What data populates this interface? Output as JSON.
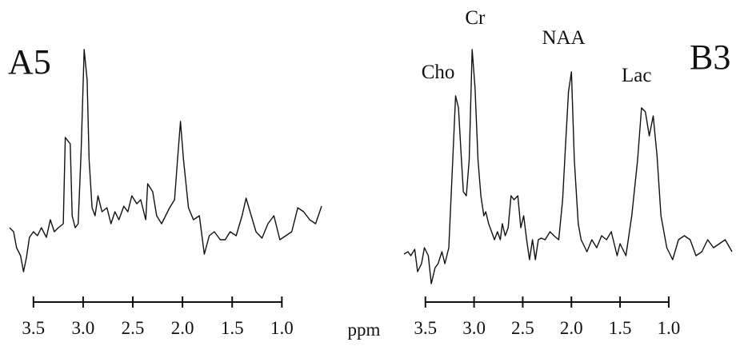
{
  "chart_data": [
    {
      "type": "line",
      "title": "A5",
      "x": [
        3.74,
        3.7,
        3.67,
        3.63,
        3.6,
        3.57,
        3.54,
        3.5,
        3.46,
        3.42,
        3.37,
        3.33,
        3.29,
        3.25,
        3.2,
        3.18,
        3.13,
        3.11,
        3.08,
        3.05,
        3.02,
        2.99,
        2.96,
        2.94,
        2.91,
        2.88,
        2.85,
        2.81,
        2.76,
        2.72,
        2.68,
        2.64,
        2.59,
        2.55,
        2.51,
        2.46,
        2.42,
        2.37,
        2.35,
        2.3,
        2.26,
        2.21,
        2.17,
        2.13,
        2.08,
        2.05,
        2.02,
        1.99,
        1.94,
        1.89,
        1.83,
        1.78,
        1.73,
        1.68,
        1.62,
        1.57,
        1.52,
        1.46,
        1.4,
        1.36,
        1.32,
        1.26,
        1.2,
        1.14,
        1.08,
        1.02,
        0.96,
        0.9,
        0.84,
        0.78,
        0.72,
        0.66,
        0.6
      ],
      "series": [
        {
          "color": "#111111",
          "values": [
            65,
            60,
            40,
            30,
            10,
            28,
            53,
            60,
            55,
            65,
            53,
            75,
            60,
            65,
            70,
            178,
            170,
            80,
            65,
            70,
            160,
            288,
            250,
            150,
            90,
            80,
            105,
            85,
            90,
            70,
            85,
            75,
            92,
            85,
            105,
            95,
            100,
            75,
            120,
            110,
            80,
            70,
            80,
            90,
            100,
            150,
            198,
            150,
            90,
            75,
            80,
            32,
            55,
            60,
            50,
            50,
            60,
            55,
            80,
            102,
            85,
            60,
            52,
            70,
            80,
            50,
            55,
            60,
            90,
            85,
            75,
            70,
            92
          ]
        }
      ],
      "xlim": [
        3.74,
        0.6
      ],
      "ylim": [
        -20,
        300
      ],
      "xticks": [
        3.5,
        {
          "value": 3,
          "label": "3.0"
        },
        2.5,
        {
          "value": 2,
          "label": "2.0"
        },
        1.5,
        {
          "value": 1,
          "label": "1.0"
        }
      ]
    },
    {
      "type": "line",
      "title": "B3",
      "xlabel": "ppm",
      "x": [
        3.72,
        3.68,
        3.65,
        3.61,
        3.58,
        3.54,
        3.51,
        3.47,
        3.44,
        3.4,
        3.37,
        3.33,
        3.3,
        3.26,
        3.23,
        3.19,
        3.16,
        3.13,
        3.11,
        3.08,
        3.05,
        3.02,
        2.99,
        2.96,
        2.93,
        2.9,
        2.88,
        2.85,
        2.82,
        2.79,
        2.76,
        2.73,
        2.71,
        2.68,
        2.65,
        2.62,
        2.59,
        2.55,
        2.52,
        2.49,
        2.46,
        2.43,
        2.4,
        2.37,
        2.34,
        2.31,
        2.27,
        2.22,
        2.18,
        2.13,
        2.09,
        2.06,
        2.03,
        2.0,
        1.97,
        1.93,
        1.9,
        1.84,
        1.79,
        1.74,
        1.69,
        1.64,
        1.59,
        1.53,
        1.5,
        1.44,
        1.38,
        1.32,
        1.28,
        1.24,
        1.2,
        1.16,
        1.12,
        1.08,
        1.02,
        0.96,
        0.9,
        0.84,
        0.78,
        0.72,
        0.66,
        0.6,
        0.54,
        0.48,
        0.42,
        0.35
      ],
      "series": [
        {
          "color": "#111111",
          "values": [
            32,
            35,
            30,
            38,
            10,
            20,
            40,
            30,
            -5,
            15,
            20,
            35,
            20,
            40,
            120,
            230,
            215,
            150,
            110,
            105,
            150,
            288,
            240,
            150,
            105,
            80,
            85,
            70,
            60,
            50,
            60,
            50,
            70,
            55,
            65,
            105,
            100,
            105,
            65,
            80,
            50,
            25,
            50,
            25,
            50,
            52,
            50,
            60,
            55,
            50,
            100,
            170,
            235,
            260,
            150,
            70,
            50,
            35,
            50,
            40,
            55,
            50,
            60,
            30,
            45,
            30,
            80,
            150,
            215,
            210,
            180,
            205,
            155,
            80,
            40,
            25,
            50,
            55,
            50,
            30,
            35,
            50,
            40,
            45,
            50,
            35
          ]
        }
      ],
      "xlim": [
        3.72,
        0.35
      ],
      "ylim": [
        -20,
        300
      ],
      "xticks": [
        3.5,
        {
          "value": 3,
          "label": "3.0"
        },
        2.5,
        {
          "value": 2,
          "label": "2.0"
        },
        1.5,
        {
          "value": 1,
          "label": "1.0"
        }
      ],
      "annotations": [
        {
          "text": "Cho",
          "x": 3.37
        },
        {
          "text": "Cr",
          "x": 2.99
        },
        {
          "text": "NAA",
          "x": 2.08
        },
        {
          "text": "Lac",
          "x": 1.33
        }
      ]
    }
  ]
}
